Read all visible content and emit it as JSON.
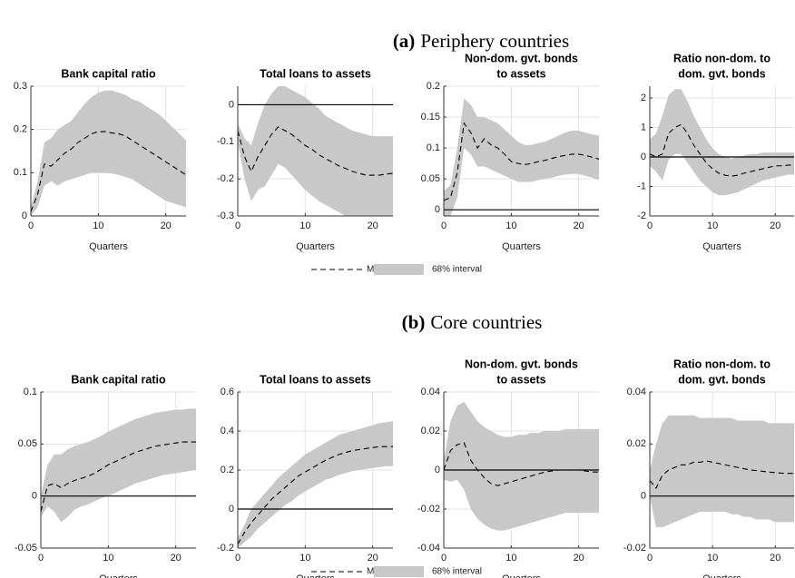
{
  "sections": [
    {
      "label": "(a)",
      "text": "Periphery countries",
      "legend": [
        "Median",
        "68% interval"
      ]
    },
    {
      "label": "(b)",
      "text": "Core countries",
      "legend": [
        "Median",
        "68% interval"
      ]
    }
  ],
  "chart_data": [
    {
      "type": "line",
      "title": [
        "Bank capital ratio"
      ],
      "xlabel": "Quarters",
      "x": [
        0,
        1,
        2,
        3,
        4,
        5,
        6,
        7,
        8,
        9,
        10,
        11,
        12,
        13,
        14,
        15,
        16,
        17,
        18,
        19,
        20,
        21,
        22,
        23
      ],
      "series": [
        {
          "color": "#000000",
          "values": [
            0.01,
            0.05,
            0.12,
            0.115,
            0.13,
            0.145,
            0.155,
            0.17,
            0.18,
            0.19,
            0.195,
            0.195,
            0.192,
            0.19,
            0.185,
            0.175,
            0.165,
            0.155,
            0.145,
            0.135,
            0.125,
            0.115,
            0.105,
            0.095
          ]
        }
      ],
      "band": {
        "color": "#c8c8c8",
        "lower": [
          0,
          0.02,
          0.07,
          0.08,
          0.07,
          0.08,
          0.085,
          0.09,
          0.095,
          0.1,
          0.1,
          0.1,
          0.098,
          0.095,
          0.09,
          0.085,
          0.075,
          0.065,
          0.055,
          0.045,
          0.035,
          0.03,
          0.025,
          0.02
        ],
        "upper": [
          0.02,
          0.08,
          0.17,
          0.18,
          0.2,
          0.21,
          0.22,
          0.24,
          0.26,
          0.275,
          0.285,
          0.29,
          0.29,
          0.285,
          0.28,
          0.27,
          0.265,
          0.255,
          0.245,
          0.235,
          0.22,
          0.205,
          0.19,
          0.175
        ]
      },
      "xlim": [
        0,
        23
      ],
      "xticks": [
        0,
        10,
        20
      ],
      "ylim": [
        0,
        0.3
      ],
      "yticks": [
        0,
        0.1,
        0.2,
        0.3
      ],
      "grid": true
    },
    {
      "type": "line",
      "title": [
        "Total loans to assets"
      ],
      "xlabel": "Quarters",
      "x": [
        0,
        1,
        2,
        3,
        4,
        5,
        6,
        7,
        8,
        9,
        10,
        11,
        12,
        13,
        14,
        15,
        16,
        17,
        18,
        19,
        20,
        21,
        22,
        23
      ],
      "series": [
        {
          "color": "#000000",
          "values": [
            -0.07,
            -0.14,
            -0.18,
            -0.14,
            -0.11,
            -0.08,
            -0.06,
            -0.07,
            -0.08,
            -0.095,
            -0.11,
            -0.12,
            -0.135,
            -0.145,
            -0.155,
            -0.165,
            -0.172,
            -0.18,
            -0.185,
            -0.19,
            -0.19,
            -0.19,
            -0.187,
            -0.185
          ]
        }
      ],
      "band": {
        "color": "#c8c8c8",
        "lower": [
          -0.1,
          -0.2,
          -0.26,
          -0.23,
          -0.22,
          -0.19,
          -0.16,
          -0.17,
          -0.19,
          -0.21,
          -0.23,
          -0.245,
          -0.26,
          -0.27,
          -0.28,
          -0.29,
          -0.3,
          -0.3,
          -0.3,
          -0.3,
          -0.3,
          -0.3,
          -0.3,
          -0.3
        ],
        "upper": [
          -0.05,
          -0.09,
          -0.11,
          -0.05,
          0,
          0.03,
          0.05,
          0.05,
          0.04,
          0.03,
          0.02,
          0.005,
          -0.01,
          -0.03,
          -0.04,
          -0.05,
          -0.06,
          -0.07,
          -0.075,
          -0.08,
          -0.085,
          -0.085,
          -0.085,
          -0.085
        ]
      },
      "xlim": [
        0,
        23
      ],
      "xticks": [
        0,
        10,
        20
      ],
      "ylim": [
        -0.3,
        0.05
      ],
      "yticks": [
        -0.3,
        -0.2,
        -0.1,
        0
      ],
      "grid": true
    },
    {
      "type": "line",
      "title": [
        "Non-dom. gvt. bonds",
        "to assets"
      ],
      "xlabel": "Quarters",
      "x": [
        0,
        1,
        2,
        3,
        4,
        5,
        6,
        7,
        8,
        9,
        10,
        11,
        12,
        13,
        14,
        15,
        16,
        17,
        18,
        19,
        20,
        21,
        22,
        23
      ],
      "series": [
        {
          "color": "#000000",
          "values": [
            0.015,
            0.02,
            0.06,
            0.14,
            0.125,
            0.1,
            0.115,
            0.105,
            0.1,
            0.09,
            0.078,
            0.075,
            0.073,
            0.075,
            0.078,
            0.08,
            0.083,
            0.086,
            0.088,
            0.09,
            0.09,
            0.088,
            0.085,
            0.082
          ]
        }
      ],
      "band": {
        "color": "#c8c8c8",
        "lower": [
          -0.01,
          -0.01,
          0.02,
          0.1,
          0.09,
          0.07,
          0.07,
          0.065,
          0.06,
          0.055,
          0.05,
          0.045,
          0.045,
          0.045,
          0.048,
          0.05,
          0.052,
          0.055,
          0.057,
          0.058,
          0.058,
          0.055,
          0.052,
          0.048
        ],
        "upper": [
          0.03,
          0.04,
          0.1,
          0.18,
          0.17,
          0.15,
          0.15,
          0.145,
          0.14,
          0.13,
          0.12,
          0.11,
          0.105,
          0.105,
          0.108,
          0.11,
          0.115,
          0.12,
          0.125,
          0.128,
          0.128,
          0.125,
          0.122,
          0.12
        ]
      },
      "xlim": [
        0,
        23
      ],
      "xticks": [
        0,
        10,
        20
      ],
      "ylim": [
        -0.01,
        0.2
      ],
      "yticks": [
        0,
        0.05,
        0.1,
        0.15,
        0.2
      ],
      "grid": true
    },
    {
      "type": "line",
      "title": [
        "Ratio non-dom. to",
        "dom. gvt. bonds"
      ],
      "xlabel": "Quarters",
      "x": [
        0,
        1,
        2,
        3,
        4,
        5,
        6,
        7,
        8,
        9,
        10,
        11,
        12,
        13,
        14,
        15,
        16,
        17,
        18,
        19,
        20,
        21,
        22,
        23
      ],
      "series": [
        {
          "color": "#000000",
          "values": [
            0.1,
            0,
            0.1,
            0.8,
            1.0,
            1.1,
            0.8,
            0.4,
            0.1,
            -0.2,
            -0.4,
            -0.55,
            -0.62,
            -0.65,
            -0.62,
            -0.55,
            -0.5,
            -0.45,
            -0.4,
            -0.35,
            -0.3,
            -0.3,
            -0.28,
            -0.27
          ]
        }
      ],
      "band": {
        "color": "#c8c8c8",
        "lower": [
          -0.3,
          -0.5,
          -0.8,
          -0.1,
          0.1,
          0.1,
          -0.2,
          -0.5,
          -0.8,
          -1.0,
          -1.2,
          -1.3,
          -1.3,
          -1.25,
          -1.2,
          -1.1,
          -1.0,
          -0.9,
          -0.8,
          -0.75,
          -0.7,
          -0.65,
          -0.6,
          -0.6
        ],
        "upper": [
          0.6,
          0.8,
          1.4,
          2.1,
          2.3,
          2.3,
          1.9,
          1.4,
          1.0,
          0.6,
          0.3,
          0.1,
          0,
          -0.05,
          0,
          0.05,
          0.1,
          0.1,
          0.15,
          0.15,
          0.15,
          0.15,
          0.15,
          0.15
        ]
      },
      "xlim": [
        0,
        23
      ],
      "xticks": [
        0,
        10,
        20
      ],
      "ylim": [
        -2,
        2.4
      ],
      "yticks": [
        -2,
        -1,
        0,
        1,
        2
      ],
      "grid": true
    },
    {
      "type": "line",
      "title": [
        "Bank capital ratio"
      ],
      "xlabel": "Quarters",
      "x": [
        0,
        1,
        2,
        3,
        4,
        5,
        6,
        7,
        8,
        9,
        10,
        11,
        12,
        13,
        14,
        15,
        16,
        17,
        18,
        19,
        20,
        21,
        22,
        23
      ],
      "series": [
        {
          "color": "#000000",
          "values": [
            -0.015,
            0.01,
            0.012,
            0.008,
            0.012,
            0.015,
            0.017,
            0.019,
            0.022,
            0.026,
            0.03,
            0.033,
            0.036,
            0.039,
            0.042,
            0.044,
            0.046,
            0.048,
            0.049,
            0.05,
            0.051,
            0.052,
            0.052,
            0.052
          ]
        }
      ],
      "band": {
        "color": "#c8c8c8",
        "lower": [
          -0.02,
          -0.01,
          -0.015,
          -0.025,
          -0.02,
          -0.013,
          -0.01,
          -0.008,
          -0.005,
          -0.002,
          0,
          0.003,
          0.006,
          0.009,
          0.012,
          0.014,
          0.016,
          0.018,
          0.02,
          0.021,
          0.022,
          0.023,
          0.024,
          0.025
        ],
        "upper": [
          0,
          0.03,
          0.04,
          0.04,
          0.045,
          0.048,
          0.05,
          0.052,
          0.055,
          0.058,
          0.062,
          0.065,
          0.068,
          0.071,
          0.074,
          0.076,
          0.078,
          0.08,
          0.081,
          0.082,
          0.083,
          0.083,
          0.084,
          0.084
        ]
      },
      "xlim": [
        0,
        23
      ],
      "xticks": [
        0,
        10,
        20
      ],
      "ylim": [
        -0.05,
        0.1
      ],
      "yticks": [
        -0.05,
        0,
        0.05,
        0.1
      ],
      "grid": true
    },
    {
      "type": "line",
      "title": [
        "Total loans to assets"
      ],
      "xlabel": "Quarters",
      "x": [
        0,
        1,
        2,
        3,
        4,
        5,
        6,
        7,
        8,
        9,
        10,
        11,
        12,
        13,
        14,
        15,
        16,
        17,
        18,
        19,
        20,
        21,
        22,
        23
      ],
      "series": [
        {
          "color": "#000000",
          "values": [
            -0.18,
            -0.12,
            -0.07,
            -0.03,
            0.01,
            0.05,
            0.08,
            0.11,
            0.14,
            0.17,
            0.19,
            0.21,
            0.23,
            0.25,
            0.265,
            0.28,
            0.29,
            0.3,
            0.305,
            0.31,
            0.315,
            0.32,
            0.32,
            0.32
          ]
        }
      ],
      "band": {
        "color": "#c8c8c8",
        "lower": [
          -0.2,
          -0.17,
          -0.14,
          -0.1,
          -0.07,
          -0.04,
          -0.01,
          0.02,
          0.04,
          0.07,
          0.09,
          0.11,
          0.13,
          0.15,
          0.16,
          0.175,
          0.185,
          0.195,
          0.2,
          0.205,
          0.21,
          0.215,
          0.22,
          0.22
        ],
        "upper": [
          -0.15,
          -0.08,
          0,
          0.04,
          0.08,
          0.12,
          0.16,
          0.19,
          0.22,
          0.25,
          0.28,
          0.3,
          0.32,
          0.34,
          0.36,
          0.38,
          0.39,
          0.4,
          0.41,
          0.42,
          0.43,
          0.44,
          0.445,
          0.45
        ]
      },
      "xlim": [
        0,
        23
      ],
      "xticks": [
        0,
        10,
        20
      ],
      "ylim": [
        -0.2,
        0.6
      ],
      "yticks": [
        -0.2,
        0,
        0.2,
        0.4,
        0.6
      ],
      "grid": true
    },
    {
      "type": "line",
      "title": [
        "Non-dom. gvt. bonds",
        "to assets"
      ],
      "xlabel": "Quarters",
      "x": [
        0,
        1,
        2,
        3,
        4,
        5,
        6,
        7,
        8,
        9,
        10,
        11,
        12,
        13,
        14,
        15,
        16,
        17,
        18,
        19,
        20,
        21,
        22,
        23
      ],
      "series": [
        {
          "color": "#000000",
          "values": [
            0,
            0.01,
            0.013,
            0.014,
            0.005,
            0,
            -0.004,
            -0.007,
            -0.008,
            -0.007,
            -0.006,
            -0.005,
            -0.004,
            -0.003,
            -0.002,
            -0.001,
            -0.0005,
            0,
            0,
            0,
            0,
            -0.0005,
            -0.001,
            -0.001
          ]
        }
      ],
      "band": {
        "color": "#c8c8c8",
        "lower": [
          -0.005,
          -0.006,
          -0.005,
          -0.01,
          -0.02,
          -0.025,
          -0.028,
          -0.03,
          -0.031,
          -0.031,
          -0.03,
          -0.029,
          -0.028,
          -0.027,
          -0.026,
          -0.025,
          -0.024,
          -0.023,
          -0.022,
          -0.022,
          -0.022,
          -0.022,
          -0.022,
          -0.022
        ],
        "upper": [
          0.005,
          0.025,
          0.033,
          0.035,
          0.03,
          0.025,
          0.022,
          0.02,
          0.018,
          0.017,
          0.017,
          0.018,
          0.018,
          0.019,
          0.019,
          0.02,
          0.02,
          0.02,
          0.021,
          0.021,
          0.021,
          0.021,
          0.021,
          0.021
        ]
      },
      "xlim": [
        0,
        23
      ],
      "xticks": [
        0,
        10,
        20
      ],
      "ylim": [
        -0.04,
        0.04
      ],
      "yticks": [
        -0.04,
        -0.02,
        0,
        0.02,
        0.04
      ],
      "grid": true
    },
    {
      "type": "line",
      "title": [
        "Ratio non-dom. to",
        "dom. gvt. bonds"
      ],
      "xlabel": "Quarters",
      "x": [
        0,
        1,
        2,
        3,
        4,
        5,
        6,
        7,
        8,
        9,
        10,
        11,
        12,
        13,
        14,
        15,
        16,
        17,
        18,
        19,
        20,
        21,
        22,
        23
      ],
      "series": [
        {
          "color": "#000000",
          "values": [
            0.006,
            0.003,
            0.008,
            0.01,
            0.011,
            0.012,
            0.012,
            0.013,
            0.013,
            0.0135,
            0.013,
            0.0125,
            0.012,
            0.0115,
            0.011,
            0.0105,
            0.01,
            0.0098,
            0.0095,
            0.0092,
            0.009,
            0.0088,
            0.0087,
            0.0087
          ]
        }
      ],
      "band": {
        "color": "#c8c8c8",
        "lower": [
          0,
          -0.012,
          -0.012,
          -0.011,
          -0.01,
          -0.009,
          -0.008,
          -0.007,
          -0.006,
          -0.006,
          -0.006,
          -0.006,
          -0.006,
          -0.007,
          -0.007,
          -0.008,
          -0.008,
          -0.009,
          -0.009,
          -0.009,
          -0.01,
          -0.01,
          -0.01,
          -0.01
        ],
        "upper": [
          0.01,
          0.02,
          0.028,
          0.031,
          0.031,
          0.031,
          0.031,
          0.031,
          0.03,
          0.03,
          0.03,
          0.03,
          0.03,
          0.03,
          0.029,
          0.029,
          0.029,
          0.029,
          0.029,
          0.028,
          0.028,
          0.028,
          0.028,
          0.028
        ]
      },
      "xlim": [
        0,
        23
      ],
      "xticks": [
        0,
        10,
        20
      ],
      "ylim": [
        -0.02,
        0.04
      ],
      "yticks": [
        -0.02,
        0,
        0.02,
        0.04
      ],
      "grid": true
    }
  ]
}
